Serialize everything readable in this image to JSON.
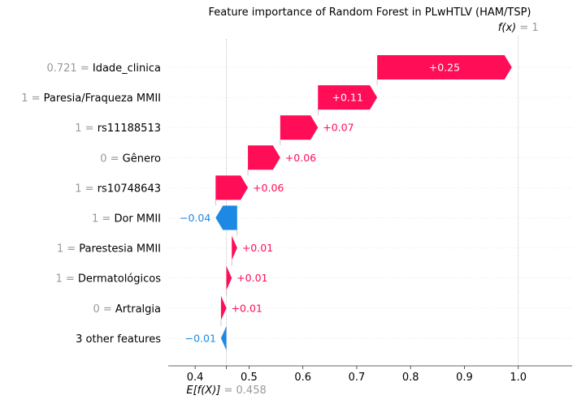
{
  "chart_data": {
    "type": "waterfall",
    "title": "Feature importance of Random Forest in PLwHTLV (HAM/TSP)",
    "base_value": 0.458,
    "base_label_prefix": "E[f(X)]",
    "base_label_value": "= 0.458",
    "output_value": 1,
    "output_label_prefix": "f(x)",
    "output_label_value": "= 1",
    "xlim": [
      0.35,
      1.1
    ],
    "x_ticks": [
      0.4,
      0.5,
      0.6,
      0.7,
      0.8,
      0.9,
      1.0
    ],
    "x_tick_labels": [
      "0.4",
      "0.5",
      "0.6",
      "0.7",
      "0.8",
      "0.9",
      "1.0"
    ],
    "colors": {
      "positive": "#ff0d57",
      "negative": "#1e88e5",
      "gray_text": "#999999"
    },
    "features": [
      {
        "value": "0.721",
        "name": "Idade_clinica",
        "contribution": 0.25,
        "label": "+0.25"
      },
      {
        "value": "1",
        "name": "Paresia/Fraqueza MMII",
        "contribution": 0.11,
        "label": "+0.11"
      },
      {
        "value": "1",
        "name": "rs11188513",
        "contribution": 0.07,
        "label": "+0.07"
      },
      {
        "value": "0",
        "name": "Gênero",
        "contribution": 0.06,
        "label": "+0.06"
      },
      {
        "value": "1",
        "name": "rs10748643",
        "contribution": 0.06,
        "label": "+0.06"
      },
      {
        "value": "1",
        "name": "Dor MMII",
        "contribution": -0.04,
        "label": "−0.04"
      },
      {
        "value": "1",
        "name": "Parestesia MMII",
        "contribution": 0.01,
        "label": "+0.01"
      },
      {
        "value": "1",
        "name": "Dermatológicos",
        "contribution": 0.01,
        "label": "+0.01"
      },
      {
        "value": "0",
        "name": "Artralgia",
        "contribution": 0.01,
        "label": "+0.01"
      },
      {
        "value": "",
        "name": "3 other features",
        "contribution": -0.01,
        "label": "−0.01"
      }
    ]
  }
}
